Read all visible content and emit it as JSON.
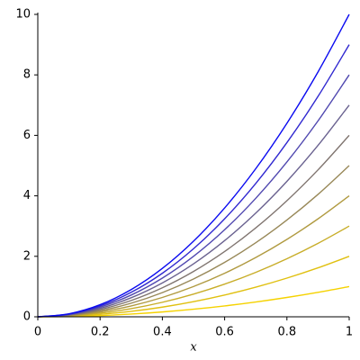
{
  "chart_data": {
    "type": "line",
    "x_label": "x",
    "x": [
      0,
      0.1,
      0.2,
      0.3,
      0.4,
      0.5,
      0.6,
      0.7,
      0.8,
      0.9,
      1
    ],
    "series": [
      {
        "color": "#f5d200",
        "values": [
          0,
          0.01,
          0.04,
          0.09,
          0.16,
          0.25,
          0.36,
          0.49,
          0.64,
          0.81,
          1
        ]
      },
      {
        "color": "#e0c010",
        "values": [
          0,
          0.02,
          0.08,
          0.18,
          0.32,
          0.5,
          0.72,
          0.98,
          1.28,
          1.62,
          2
        ]
      },
      {
        "color": "#c8ad28",
        "values": [
          0,
          0.03,
          0.12,
          0.27,
          0.48,
          0.75,
          1.08,
          1.47,
          1.92,
          2.43,
          3
        ]
      },
      {
        "color": "#b09a40",
        "values": [
          0,
          0.04,
          0.16,
          0.36,
          0.64,
          1,
          1.44,
          1.96,
          2.56,
          3.24,
          4
        ]
      },
      {
        "color": "#988858",
        "values": [
          0,
          0.05,
          0.2,
          0.45,
          0.8,
          1.25,
          1.8,
          2.45,
          3.2,
          4.05,
          5
        ]
      },
      {
        "color": "#807570",
        "values": [
          0,
          0.06,
          0.24,
          0.54,
          0.96,
          1.5,
          2.16,
          2.94,
          3.84,
          4.86,
          6
        ]
      },
      {
        "color": "#6a6290",
        "values": [
          0,
          0.07,
          0.28,
          0.63,
          1.12,
          1.75,
          2.52,
          3.43,
          4.48,
          5.67,
          7
        ]
      },
      {
        "color": "#5048b0",
        "values": [
          0,
          0.08,
          0.32,
          0.72,
          1.28,
          2,
          2.88,
          3.92,
          5.12,
          6.48,
          8
        ]
      },
      {
        "color": "#3028d0",
        "values": [
          0,
          0.09,
          0.36,
          0.81,
          1.44,
          2.25,
          3.24,
          4.41,
          5.76,
          7.29,
          9
        ]
      },
      {
        "color": "#0a0af0",
        "values": [
          0,
          0.1,
          0.4,
          0.9,
          1.6,
          2.5,
          3.6,
          4.9,
          6.4,
          8.1,
          10
        ]
      }
    ],
    "xlim": [
      0,
      1
    ],
    "xticks": [
      0,
      0.2,
      0.4,
      0.6,
      0.8,
      1
    ],
    "ylim": [
      0,
      10
    ],
    "yticks": [
      0,
      2,
      4,
      6,
      8,
      10
    ]
  }
}
